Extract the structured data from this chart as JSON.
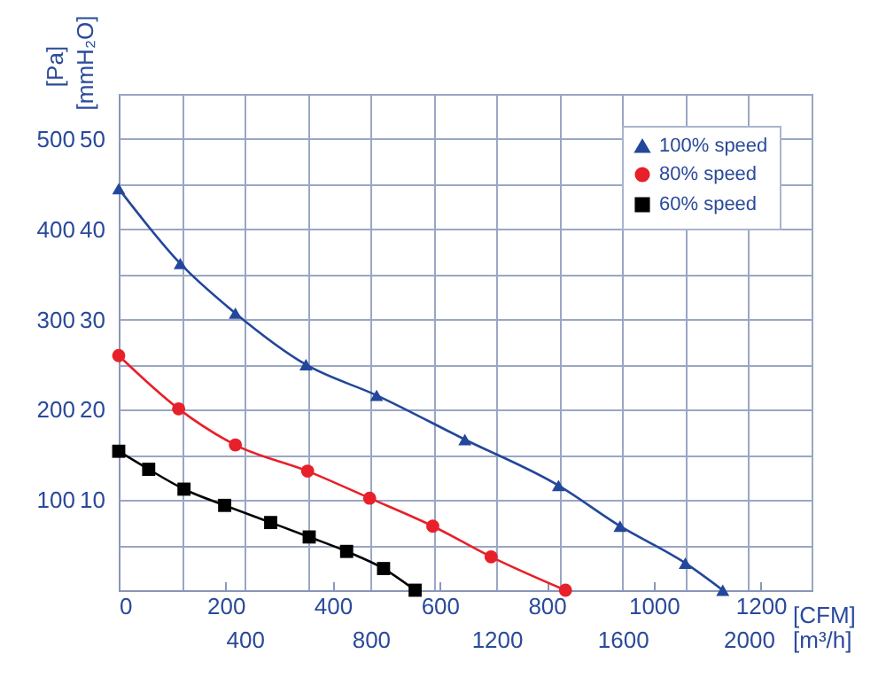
{
  "chart_data": {
    "type": "line",
    "xlabel": "[CFM]",
    "x2label": "[m³/h]",
    "ylabel": "[Pa]",
    "y2label": "[mmH₂O]",
    "xlim": [
      0,
      1295
    ],
    "xticks": [
      0,
      200,
      400,
      600,
      800,
      1000,
      1200
    ],
    "x2lim": [
      0,
      2200
    ],
    "x2ticks": [
      {
        "value": 200,
        "label": null
      },
      400,
      {
        "value": 600,
        "label": null
      },
      800,
      {
        "value": 1000,
        "label": null
      },
      1200,
      {
        "value": 1400,
        "label": null
      },
      1600,
      {
        "value": 1800,
        "label": null
      },
      2000,
      {
        "value": 2200,
        "label": null
      }
    ],
    "ylim": [
      0,
      550
    ],
    "yticks": [
      {
        "value": 50,
        "label": null
      },
      100,
      {
        "value": 150,
        "label": null
      },
      200,
      {
        "value": 250,
        "label": null
      },
      300,
      {
        "value": 350,
        "label": null
      },
      400,
      {
        "value": 450,
        "label": null
      },
      500,
      {
        "value": 550,
        "label": null
      }
    ],
    "y2lim": [
      0,
      55
    ],
    "y2ticks": [
      10,
      20,
      30,
      40,
      50
    ],
    "grid": true,
    "legend": "top right",
    "line_style": "solid",
    "series": [
      {
        "name": "100% speed",
        "color": "#23479a",
        "marker": "triangle",
        "x": [
          0,
          115,
          218,
          350,
          482,
          647,
          822,
          937,
          1059,
          1129
        ],
        "values": [
          445,
          362,
          307,
          250,
          216,
          167,
          116,
          71,
          30,
          0
        ]
      },
      {
        "name": "80% speed",
        "color": "#e8202a",
        "marker": "circle",
        "x": [
          0,
          112,
          218,
          353,
          469,
          587,
          696,
          835
        ],
        "values": [
          260,
          201,
          161,
          132,
          102,
          71,
          37,
          0
        ]
      },
      {
        "name": "60% speed",
        "color": "#000000",
        "marker": "square",
        "x": [
          0,
          56,
          122,
          198,
          284,
          356,
          426,
          495,
          554
        ],
        "values": [
          154,
          134,
          112,
          94,
          75,
          59,
          43,
          24,
          0
        ]
      }
    ]
  }
}
